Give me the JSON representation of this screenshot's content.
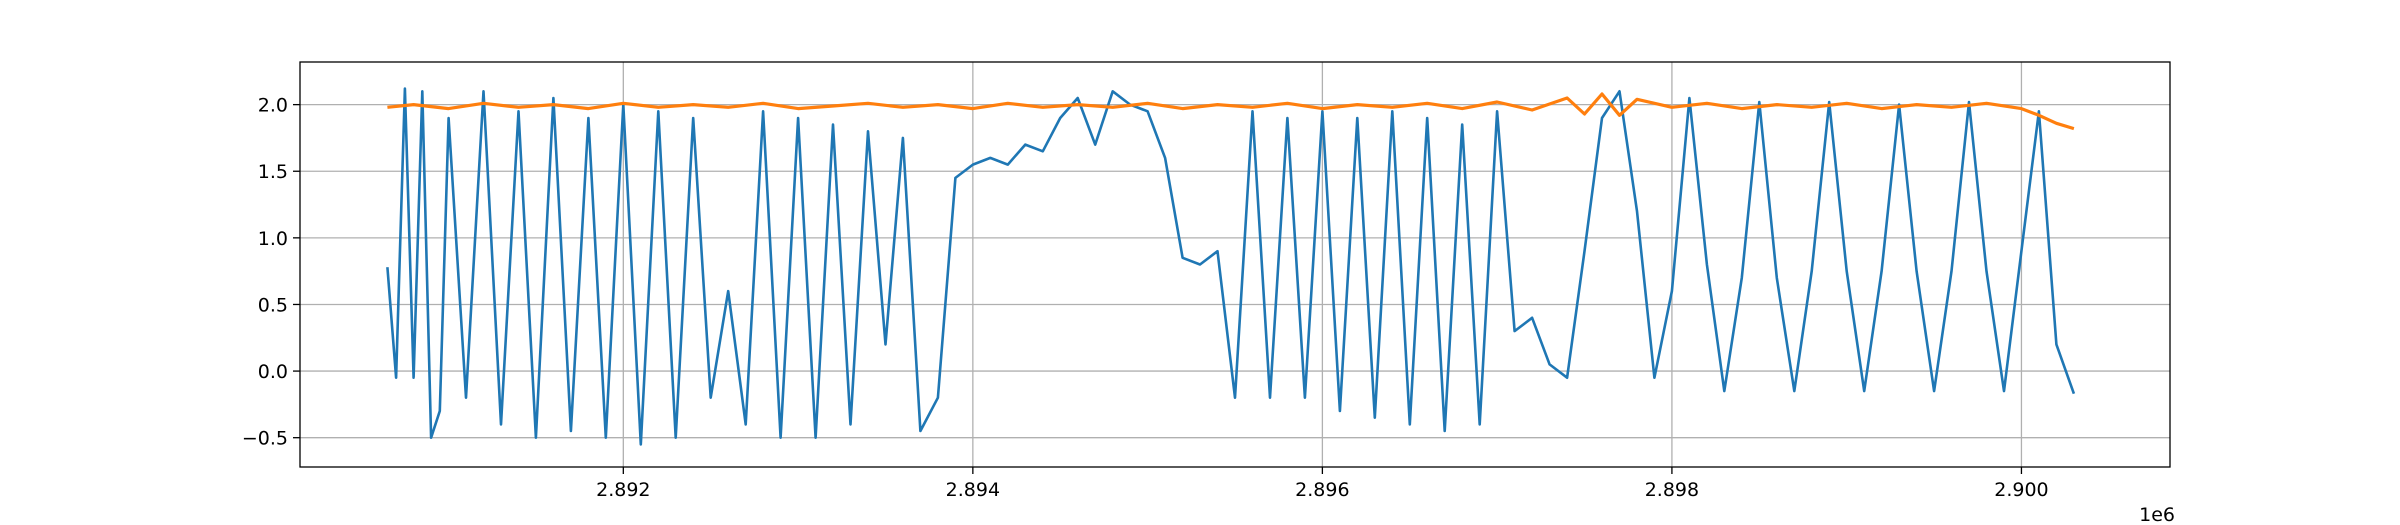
{
  "chart_data": {
    "type": "line",
    "title": "",
    "xlabel": "",
    "ylabel": "",
    "x_offset_label": "1e6",
    "xlim": [
      2.89015,
      2.90085
    ],
    "ylim": [
      -0.72,
      2.32
    ],
    "grid": true,
    "x_ticks": [
      {
        "value": 2.892,
        "label": "2.892"
      },
      {
        "value": 2.894,
        "label": "2.894"
      },
      {
        "value": 2.896,
        "label": "2.896"
      },
      {
        "value": 2.898,
        "label": "2.898"
      },
      {
        "value": 2.9,
        "label": "2.900"
      }
    ],
    "y_ticks": [
      {
        "value": 2.0,
        "label": "2.0"
      },
      {
        "value": 1.5,
        "label": "1.5"
      },
      {
        "value": 1.0,
        "label": "1.0"
      },
      {
        "value": 0.5,
        "label": "0.5"
      },
      {
        "value": 0.0,
        "label": "0.0"
      },
      {
        "value": -0.5,
        "label": "−0.5"
      }
    ],
    "series": [
      {
        "color": "#1f77b4",
        "x": [
          2.89065,
          2.8907,
          2.89075,
          2.8908,
          2.89085,
          2.8909,
          2.89095,
          2.891,
          2.8911,
          2.8912,
          2.8913,
          2.8914,
          2.8915,
          2.8916,
          2.8917,
          2.8918,
          2.8919,
          2.892,
          2.8921,
          2.8922,
          2.8923,
          2.8924,
          2.8925,
          2.8926,
          2.8927,
          2.8928,
          2.8929,
          2.893,
          2.8931,
          2.8932,
          2.8933,
          2.8934,
          2.8935,
          2.8936,
          2.8937,
          2.8938,
          2.8939,
          2.894,
          2.8941,
          2.8942,
          2.8943,
          2.8944,
          2.8945,
          2.8946,
          2.8947,
          2.8948,
          2.8949,
          2.895,
          2.8951,
          2.8952,
          2.8953,
          2.8954,
          2.8955,
          2.8956,
          2.8957,
          2.8958,
          2.8959,
          2.896,
          2.8961,
          2.8962,
          2.8963,
          2.8964,
          2.8965,
          2.8966,
          2.8967,
          2.8968,
          2.8969,
          2.897,
          2.8971,
          2.8972,
          2.8973,
          2.8974,
          2.8975,
          2.8976,
          2.8977,
          2.8978,
          2.8979,
          2.898,
          2.8981,
          2.8982,
          2.8983,
          2.8984,
          2.8985,
          2.8986,
          2.8987,
          2.8988,
          2.8989,
          2.899,
          2.8991,
          2.8992,
          2.8993,
          2.8994,
          2.8995,
          2.8996,
          2.8997,
          2.8998,
          2.8999,
          2.9,
          2.9001,
          2.9002,
          2.9003
        ],
        "y": [
          0.78,
          -0.05,
          2.12,
          -0.05,
          2.1,
          -0.5,
          -0.3,
          1.9,
          -0.2,
          2.1,
          -0.4,
          1.95,
          -0.5,
          2.05,
          -0.45,
          1.9,
          -0.5,
          2.0,
          -0.55,
          1.95,
          -0.5,
          1.9,
          -0.2,
          0.6,
          -0.4,
          1.95,
          -0.5,
          1.9,
          -0.5,
          1.85,
          -0.4,
          1.8,
          0.2,
          1.75,
          -0.45,
          -0.2,
          1.45,
          1.55,
          1.6,
          1.55,
          1.7,
          1.65,
          1.9,
          2.05,
          1.7,
          2.1,
          2.0,
          1.95,
          1.6,
          0.85,
          0.8,
          0.9,
          -0.2,
          1.95,
          -0.2,
          1.9,
          -0.2,
          1.95,
          -0.3,
          1.9,
          -0.35,
          1.95,
          -0.4,
          1.9,
          -0.45,
          1.85,
          -0.4,
          1.95,
          0.3,
          0.4,
          0.05,
          -0.05,
          0.9,
          1.9,
          2.1,
          1.2,
          -0.05,
          0.6,
          2.05,
          0.8,
          -0.15,
          0.7,
          2.02,
          0.7,
          -0.15,
          0.75,
          2.02,
          0.75,
          -0.15,
          0.75,
          2.0,
          0.75,
          -0.15,
          0.75,
          2.02,
          0.75,
          -0.15,
          0.9,
          1.95,
          0.2,
          -0.17
        ]
      },
      {
        "color": "#ff7f0e",
        "x": [
          2.89065,
          2.8908,
          2.891,
          2.8912,
          2.8914,
          2.8916,
          2.8918,
          2.892,
          2.8922,
          2.8924,
          2.8926,
          2.8928,
          2.893,
          2.8932,
          2.8934,
          2.8936,
          2.8938,
          2.894,
          2.8942,
          2.8944,
          2.8946,
          2.8948,
          2.895,
          2.8952,
          2.8954,
          2.8956,
          2.8958,
          2.896,
          2.8962,
          2.8964,
          2.8966,
          2.8968,
          2.897,
          2.8972,
          2.8974,
          2.8975,
          2.8976,
          2.8977,
          2.8978,
          2.898,
          2.8982,
          2.8984,
          2.8986,
          2.8988,
          2.899,
          2.8992,
          2.8994,
          2.8996,
          2.8998,
          2.9,
          2.9001,
          2.9002,
          2.9003
        ],
        "y": [
          1.98,
          2.0,
          1.97,
          2.01,
          1.98,
          2.0,
          1.97,
          2.01,
          1.98,
          2.0,
          1.98,
          2.01,
          1.97,
          1.99,
          2.01,
          1.98,
          2.0,
          1.97,
          2.01,
          1.98,
          2.0,
          1.98,
          2.01,
          1.97,
          2.0,
          1.98,
          2.01,
          1.97,
          2.0,
          1.98,
          2.01,
          1.97,
          2.02,
          1.96,
          2.05,
          1.93,
          2.08,
          1.92,
          2.04,
          1.98,
          2.01,
          1.97,
          2.0,
          1.98,
          2.01,
          1.97,
          2.0,
          1.98,
          2.01,
          1.97,
          1.92,
          1.86,
          1.82
        ]
      }
    ]
  }
}
